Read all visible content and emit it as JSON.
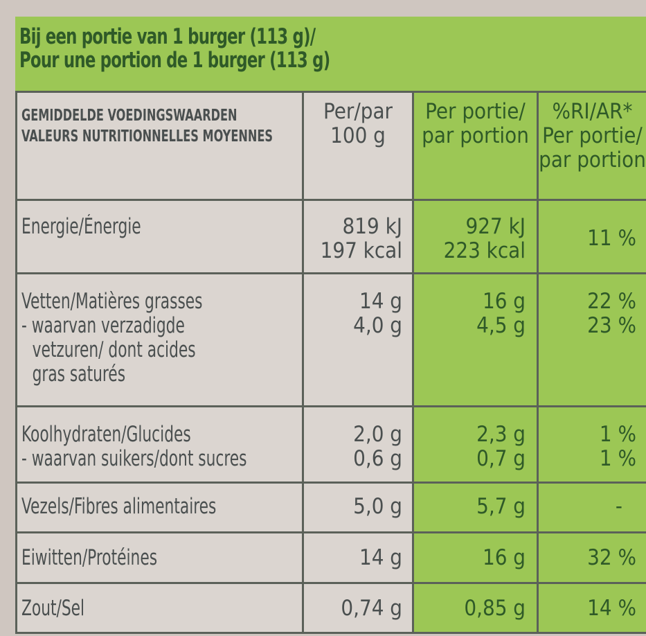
{
  "header": {
    "line1": "Bij een portie van 1 burger (113 g)/",
    "line2": "Pour une portion de 1 burger (113 g)"
  },
  "columns": {
    "label_nl": "GEMIDDELDE VOEDINGSWAARDEN",
    "label_fr": "VALEURS NUTRITIONNELLES MOYENNES",
    "per100_1": "Per/par",
    "per100_2": "100 g",
    "portion_1": "Per portie/",
    "portion_2": "par portion",
    "ri_1": "%RI/AR*",
    "ri_2": "Per portie/",
    "ri_3": "par portion"
  },
  "rows": {
    "energy": {
      "label": "Energie/Énergie",
      "per100_kj": "819 kJ",
      "per100_kcal": "197 kcal",
      "portion_kj": "927 kJ",
      "portion_kcal": "223 kcal",
      "ri": "11 %"
    },
    "fat": {
      "label": "Vetten/Matières grasses",
      "sat_label_1": "- waarvan verzadigde",
      "sat_label_2": "vetzuren/ dont acides",
      "sat_label_3": "gras saturés",
      "per100": "14 g",
      "per100_sat": "4,0 g",
      "portion": "16 g",
      "portion_sat": "4,5 g",
      "ri": "22 %",
      "ri_sat": "23 %"
    },
    "carbs": {
      "label": "Koolhydraten/Glucides",
      "sugar_label": "- waarvan suikers/dont sucres",
      "per100": "2,0 g",
      "per100_sugar": "0,6 g",
      "portion": "2,3 g",
      "portion_sugar": "0,7 g",
      "ri": "1 %",
      "ri_sugar": "1 %"
    },
    "fibre": {
      "label": "Vezels/Fibres alimentaires",
      "per100": "5,0 g",
      "portion": "5,7 g",
      "ri": "-"
    },
    "protein": {
      "label": "Eiwitten/Protéines",
      "per100": "14 g",
      "portion": "16 g",
      "ri": "32 %"
    },
    "salt": {
      "label": "Zout/Sel",
      "per100": "0,74 g",
      "portion": "0,85 g",
      "ri": "14 %"
    }
  },
  "colors": {
    "green": "#9cc755",
    "base": "#dbd5d0",
    "text": "#4a4f4f",
    "green_text": "#2f5a28"
  }
}
